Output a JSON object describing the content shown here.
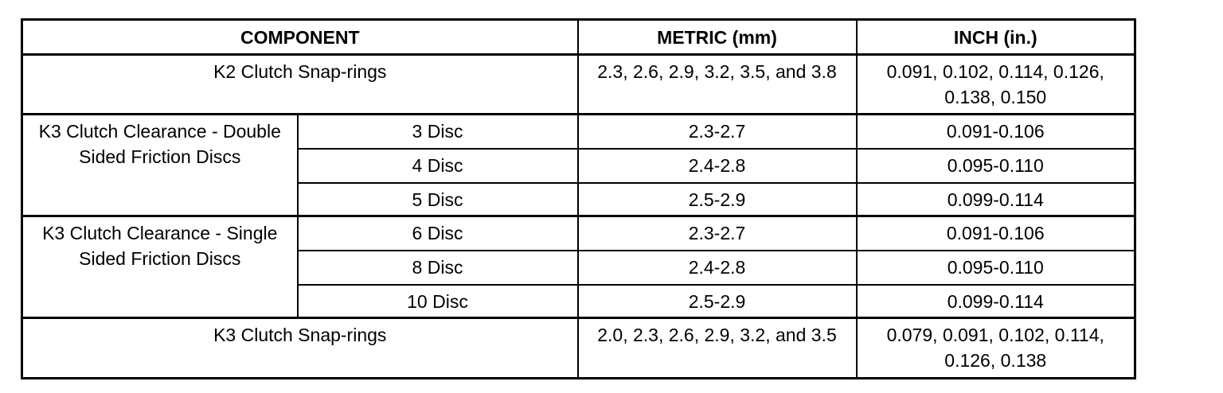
{
  "headers": {
    "component": "COMPONENT",
    "metric": "METRIC (mm)",
    "inch": "INCH (in.)"
  },
  "k2_snap": {
    "label": "K2 Clutch Snap-rings",
    "metric": "2.3, 2.6, 2.9, 3.2, 3.5, and 3.8",
    "inch": "0.091, 0.102, 0.114, 0.126, 0.138, 0.150"
  },
  "double_sided": {
    "label": "K3 Clutch Clearance - Double Sided Friction Discs",
    "rows": [
      {
        "disc": "3 Disc",
        "metric": "2.3-2.7",
        "inch": "0.091-0.106"
      },
      {
        "disc": "4 Disc",
        "metric": "2.4-2.8",
        "inch": "0.095-0.110"
      },
      {
        "disc": "5 Disc",
        "metric": "2.5-2.9",
        "inch": "0.099-0.114"
      }
    ]
  },
  "single_sided": {
    "label": "K3 Clutch Clearance - Single Sided Friction Discs",
    "rows": [
      {
        "disc": "6 Disc",
        "metric": "2.3-2.7",
        "inch": "0.091-0.106"
      },
      {
        "disc": "8 Disc",
        "metric": "2.4-2.8",
        "inch": "0.095-0.110"
      },
      {
        "disc": "10 Disc",
        "metric": "2.5-2.9",
        "inch": "0.099-0.114"
      }
    ]
  },
  "k3_snap": {
    "label": "K3 Clutch Snap-rings",
    "metric": "2.0, 2.3, 2.6, 2.9, 3.2, and 3.5",
    "inch": "0.079, 0.091, 0.102, 0.114, 0.126, 0.138"
  }
}
